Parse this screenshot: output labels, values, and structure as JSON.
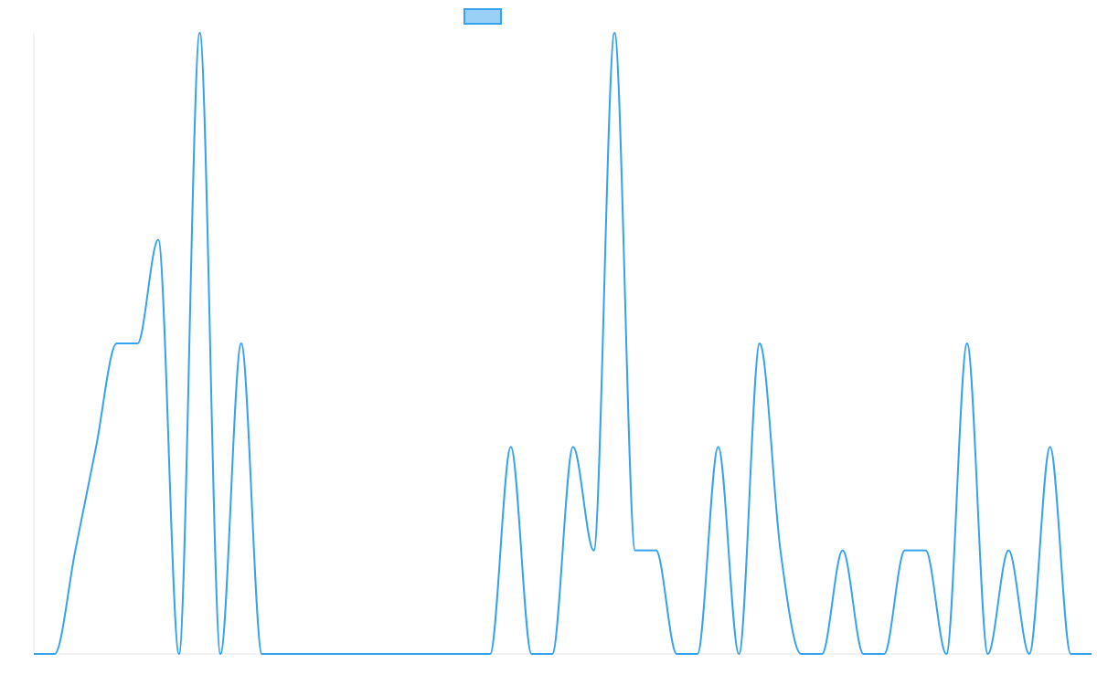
{
  "chart_data": {
    "type": "line",
    "title": "",
    "xlabel": "",
    "ylabel": "",
    "legend": {
      "placement": "top-center",
      "entries": [
        {
          "label": ""
        }
      ]
    },
    "grid": false,
    "colors": {
      "line": "#36a2eb",
      "legend_fill": "#9ad0f5",
      "axis": "#e6e6e6"
    },
    "ylim": [
      0,
      6
    ],
    "x": [
      0,
      1,
      2,
      3,
      4,
      5,
      6,
      7,
      8,
      9,
      10,
      11,
      12,
      13,
      14,
      15,
      16,
      17,
      18,
      19,
      20,
      21,
      22,
      23,
      24,
      25,
      26,
      27,
      28,
      29,
      30,
      31,
      32,
      33,
      34,
      35,
      36,
      37,
      38,
      39,
      40,
      41,
      42,
      43,
      44,
      45,
      46,
      47,
      48,
      49,
      50,
      51
    ],
    "series": [
      {
        "values": [
          0,
          0,
          1,
          2,
          3,
          3,
          4,
          0,
          6,
          0,
          3,
          0,
          0,
          0,
          0,
          0,
          0,
          0,
          0,
          0,
          0,
          0,
          0,
          2,
          0,
          0,
          2,
          1,
          6,
          1,
          1,
          0,
          0,
          2,
          0,
          3,
          1,
          0,
          0,
          1,
          0,
          0,
          1,
          1,
          0,
          3,
          0,
          1,
          0,
          2,
          0,
          0
        ]
      }
    ]
  }
}
